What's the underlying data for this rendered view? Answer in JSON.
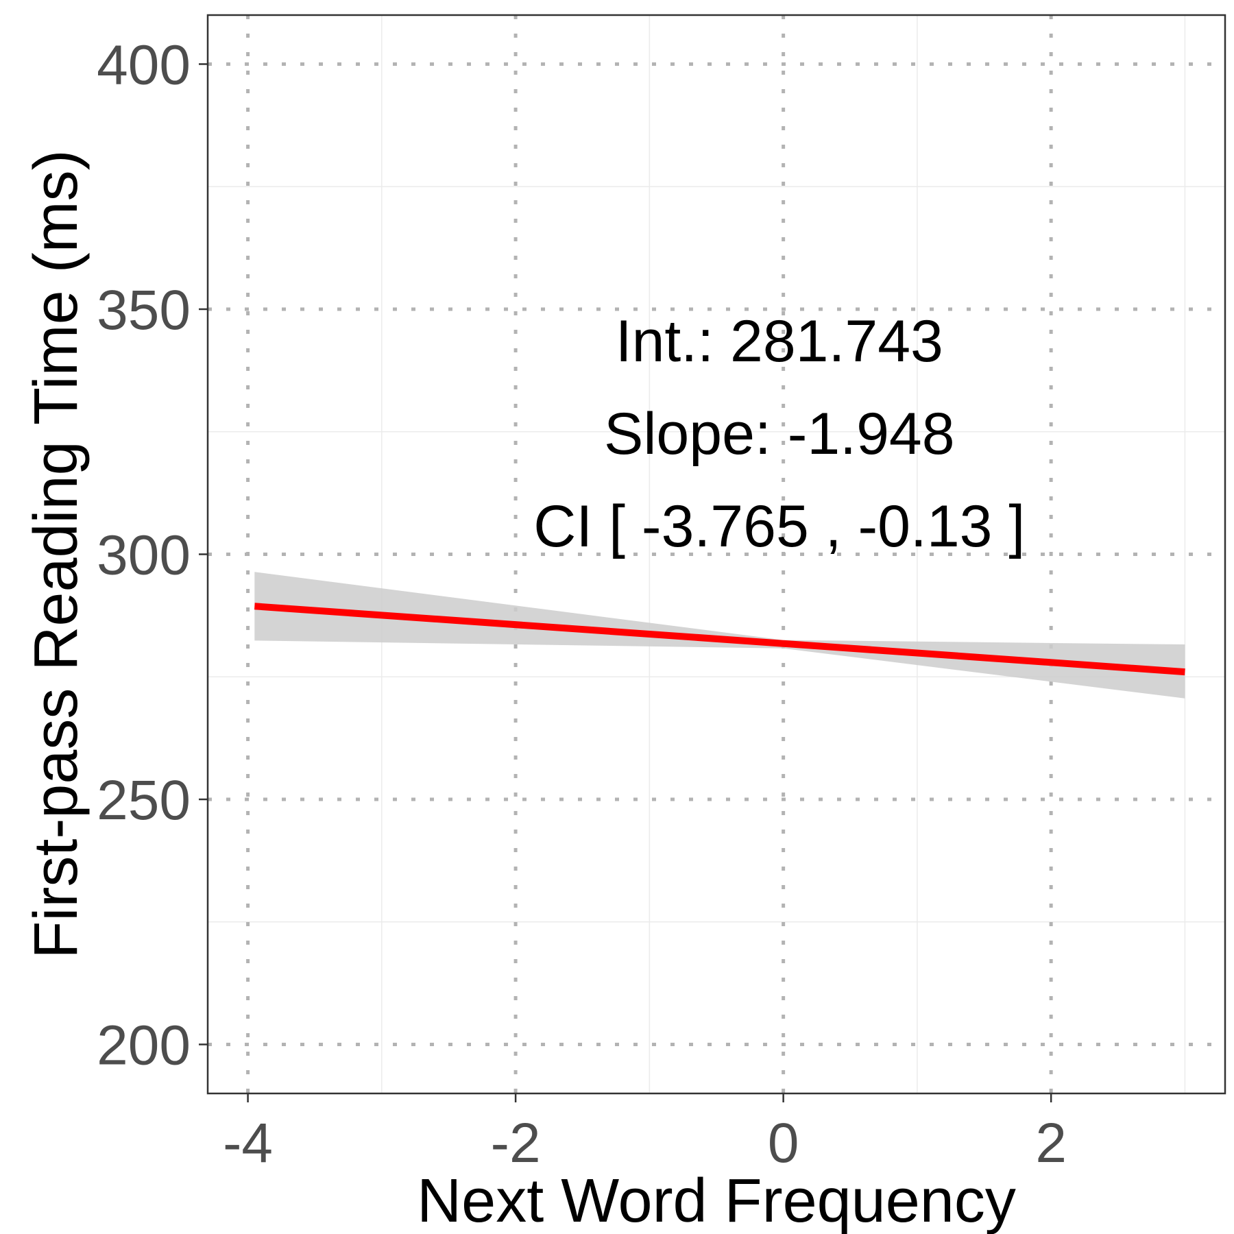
{
  "chart_data": {
    "type": "line",
    "xlabel": "Next Word Frequency",
    "ylabel": "First-pass Reading Time (ms)",
    "xlim": [
      -4.3,
      3.3
    ],
    "ylim": [
      190,
      410
    ],
    "x_ticks": [
      -4,
      -2,
      0,
      2
    ],
    "x_tick_labels": [
      "-4",
      "-2",
      "0",
      "2"
    ],
    "y_ticks": [
      200,
      250,
      300,
      350,
      400
    ],
    "y_tick_labels": [
      "200",
      "250",
      "300",
      "350",
      "400"
    ],
    "x_minor_ticks": [
      -3,
      -1,
      1,
      3
    ],
    "y_minor_ticks": [
      225,
      275,
      325,
      375
    ],
    "grid": true,
    "series": [
      {
        "type": "line",
        "color": "#ff0000",
        "x": [
          -3.95,
          3.0
        ],
        "y": [
          289.4,
          276.0
        ]
      }
    ],
    "confidence_band": {
      "color": "#cccccc",
      "x": [
        -3.95,
        0.0,
        3.0
      ],
      "lower": [
        282.4,
        280.8,
        270.6
      ],
      "upper": [
        296.4,
        282.5,
        281.6
      ]
    },
    "annotations": [
      "Int.: 281.743",
      "Slope: -1.948",
      "CI [ -3.765 , -0.13 ]"
    ]
  }
}
